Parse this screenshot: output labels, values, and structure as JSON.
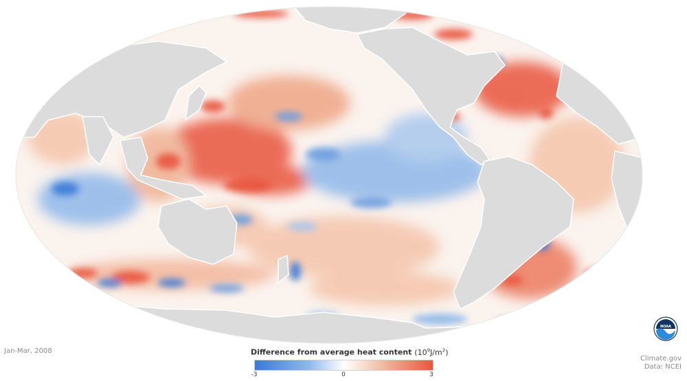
{
  "map": {
    "projection": "mollweide",
    "ocean_base_color": "#ffffff",
    "land_color": "#dcdcdc",
    "coast_color": "#ffffff"
  },
  "date_label": "Jan-Mar, 2008",
  "legend": {
    "title_text": "Difference from average heat content",
    "unit_base": "(10",
    "unit_exp": "9",
    "unit_mid": "J/m",
    "unit_exp2": "2",
    "unit_end": ")",
    "tick_min": "-3",
    "tick_mid": "0",
    "tick_max": "3",
    "color_low": "#3b7ad6",
    "color_mid": "#ffffff",
    "color_high": "#e8553d"
  },
  "credit": {
    "source": "Climate.gov",
    "data": "Data: NCEI"
  },
  "logo": {
    "text": "NOAA",
    "color_dark": "#12345f",
    "color_light": "#2c8ad8"
  }
}
